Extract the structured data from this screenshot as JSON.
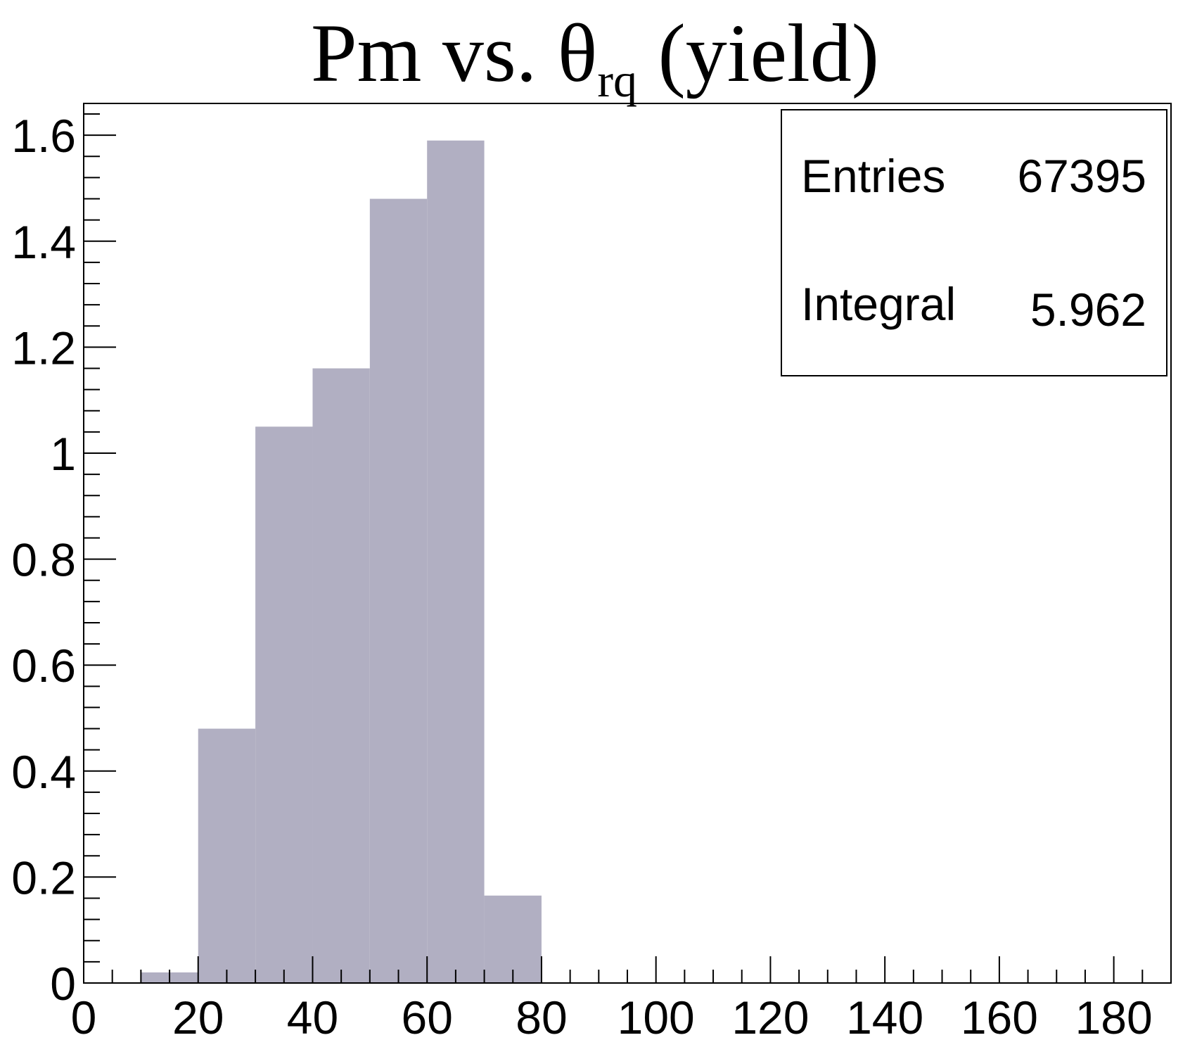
{
  "chart_data": {
    "type": "bar",
    "title": {
      "main": "Pm vs. θ",
      "subscript": "rq",
      "suffix": " (yield)"
    },
    "xlabel": "",
    "ylabel": "",
    "xlim": [
      0,
      190
    ],
    "ylim": [
      0,
      1.66
    ],
    "x_ticks": [
      0,
      20,
      40,
      60,
      80,
      100,
      120,
      140,
      160,
      180
    ],
    "y_ticks": [
      0,
      0.2,
      0.4,
      0.6,
      0.8,
      1,
      1.2,
      1.4,
      1.6
    ],
    "bin_width": 10,
    "bins": [
      {
        "x0": 10,
        "x1": 20,
        "value": 0.02
      },
      {
        "x0": 20,
        "x1": 30,
        "value": 0.48
      },
      {
        "x0": 30,
        "x1": 40,
        "value": 1.05
      },
      {
        "x0": 40,
        "x1": 50,
        "value": 1.16
      },
      {
        "x0": 50,
        "x1": 60,
        "value": 1.48
      },
      {
        "x0": 60,
        "x1": 70,
        "value": 1.59
      },
      {
        "x0": 70,
        "x1": 80,
        "value": 0.165
      }
    ],
    "fill_color": "#b1afc2",
    "grid": false,
    "legend": "none",
    "stats_box": {
      "placement": "top-right",
      "rows": [
        {
          "label": "Entries",
          "value": "67395"
        },
        {
          "label": "Integral",
          "value": "5.962"
        }
      ]
    }
  }
}
